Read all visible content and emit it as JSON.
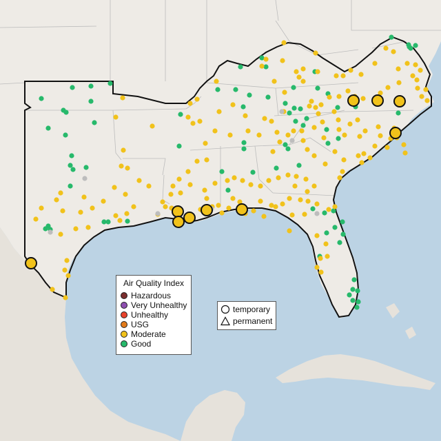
{
  "legend": {
    "title": "Air Quality Index",
    "items": [
      {
        "label": "Hazardous",
        "color": "#7a2e2e"
      },
      {
        "label": "Very Unhealthy",
        "color": "#8e4fb0"
      },
      {
        "label": "Unhealthy",
        "color": "#e8432c"
      },
      {
        "label": "USG",
        "color": "#e17a1b"
      },
      {
        "label": "Moderate",
        "color": "#f1c21b"
      },
      {
        "label": "Good",
        "color": "#27b96b"
      }
    ]
  },
  "marker_legend": {
    "items": [
      {
        "label": "temporary",
        "icon": "circle-icon"
      },
      {
        "label": "permanent",
        "icon": "triangle-icon"
      }
    ]
  },
  "colors": {
    "water": "#bcd3e4",
    "land": "#eeebe6",
    "no_data": "#bdbdbd"
  }
}
